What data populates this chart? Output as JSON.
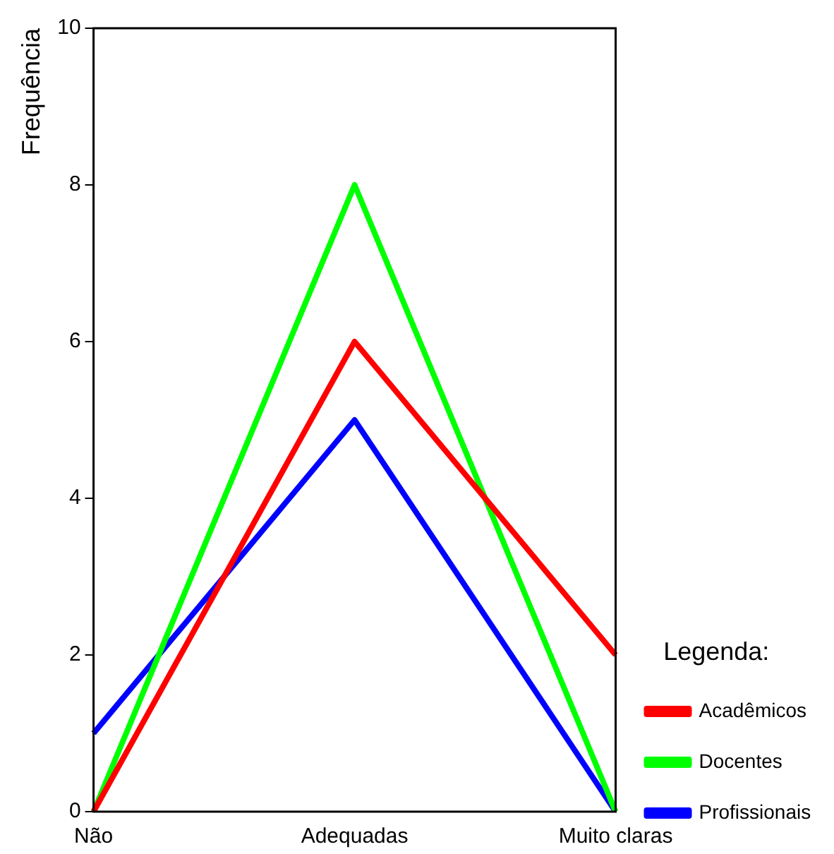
{
  "chart_data": {
    "type": "line",
    "ylabel": "Frequência",
    "legend_title": "Legenda:",
    "categories": [
      "Não",
      "Adequadas",
      "Muito claras"
    ],
    "series": [
      {
        "name": "Acadêmicos",
        "color": "#ff0000",
        "values": [
          0,
          6,
          2
        ]
      },
      {
        "name": "Docentes",
        "color": "#00ff00",
        "values": [
          0,
          8,
          0
        ]
      },
      {
        "name": "Profissionais",
        "color": "#0000ff",
        "values": [
          1,
          5,
          0
        ]
      }
    ],
    "ylim": [
      0,
      10
    ],
    "yticks": [
      0,
      2,
      4,
      6,
      8,
      10
    ],
    "grid": false,
    "legend": "bottom right",
    "marker": "none",
    "line_style": "solid"
  }
}
